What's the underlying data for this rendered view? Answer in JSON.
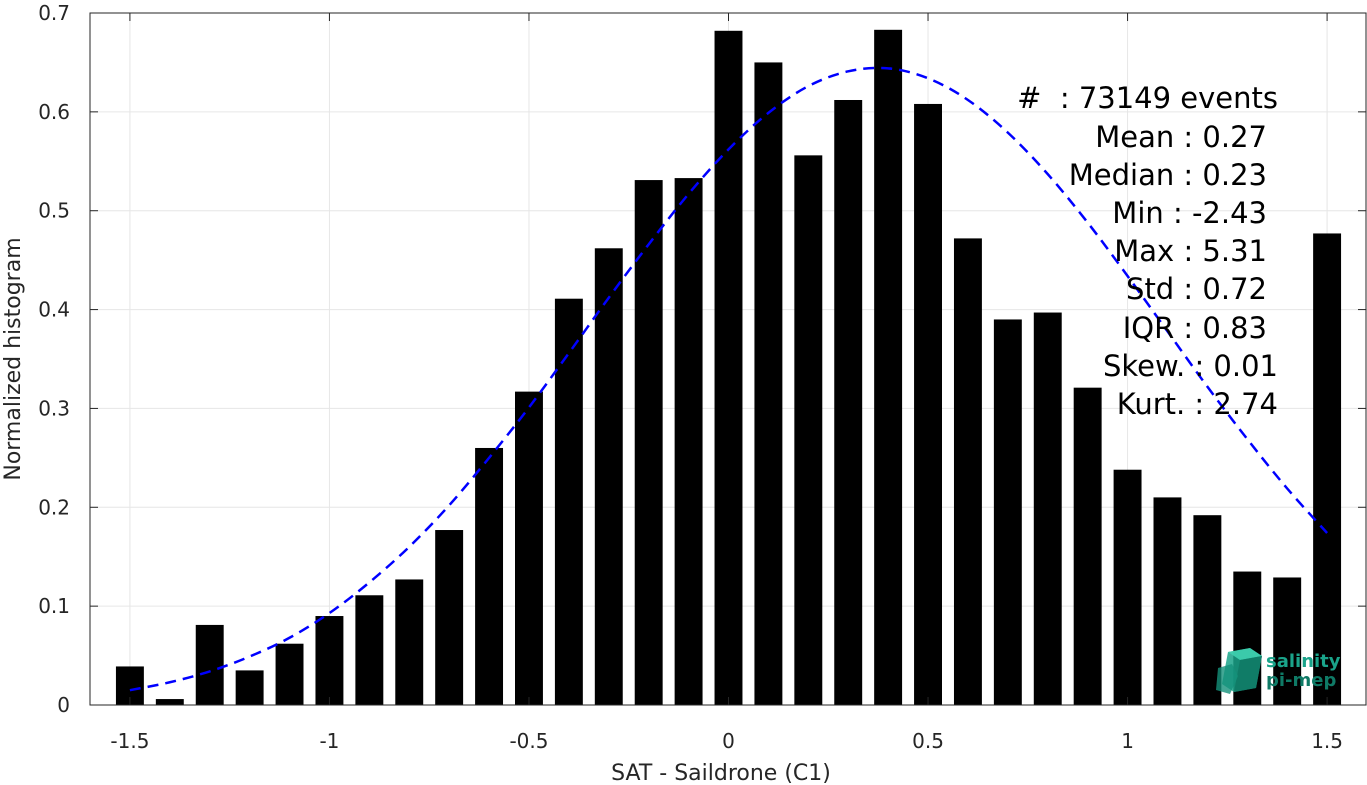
{
  "chart_data": {
    "type": "bar",
    "xlabel": "SAT - Saildrone (C1)",
    "ylabel": "Normalized histogram",
    "xlim": [
      -1.6,
      1.6
    ],
    "ylim": [
      0,
      0.7
    ],
    "grid": true,
    "x_ticks": [
      "-1.5",
      "-1",
      "-0.5",
      "0",
      "0.5",
      "1",
      "1.5"
    ],
    "x_tick_values": [
      -1.5,
      -1,
      -0.5,
      0,
      0.5,
      1,
      1.5
    ],
    "y_ticks": [
      "0",
      "0.1",
      "0.2",
      "0.3",
      "0.4",
      "0.5",
      "0.6",
      "0.7"
    ],
    "y_tick_values": [
      0,
      0.1,
      0.2,
      0.3,
      0.4,
      0.5,
      0.6,
      0.7
    ],
    "bar_width": 0.07,
    "bars": {
      "x": [
        -1.5,
        -1.4,
        -1.3,
        -1.2,
        -1.1,
        -1.0,
        -0.9,
        -0.8,
        -0.7,
        -0.6,
        -0.5,
        -0.4,
        -0.3,
        -0.2,
        -0.1,
        0.0,
        0.1,
        0.2,
        0.3,
        0.4,
        0.5,
        0.6,
        0.7,
        0.8,
        0.9,
        1.0,
        1.1,
        1.2,
        1.3,
        1.4,
        1.5
      ],
      "values": [
        0.039,
        0.006,
        0.081,
        0.035,
        0.062,
        0.09,
        0.111,
        0.127,
        0.177,
        0.26,
        0.317,
        0.411,
        0.462,
        0.531,
        0.533,
        0.682,
        0.65,
        0.556,
        0.612,
        0.683,
        0.608,
        0.472,
        0.39,
        0.397,
        0.321,
        0.238,
        0.21,
        0.192,
        0.135,
        0.129,
        0.477
      ],
      "color": "#000000"
    },
    "fit_curve": {
      "style": "dashed",
      "color": "#0000ff",
      "x": [
        -1.5,
        -1.4,
        -1.3,
        -1.2,
        -1.1,
        -1.0,
        -0.9,
        -0.8,
        -0.7,
        -0.6,
        -0.5,
        -0.4,
        -0.3,
        -0.2,
        -0.1,
        0.0,
        0.1,
        0.2,
        0.3,
        0.4,
        0.5,
        0.6,
        0.7,
        0.8,
        0.9,
        1.0,
        1.1,
        1.2,
        1.3,
        1.4,
        1.5
      ],
      "y": [
        0.015,
        0.023,
        0.034,
        0.049,
        0.068,
        0.093,
        0.124,
        0.16,
        0.202,
        0.25,
        0.301,
        0.356,
        0.412,
        0.466,
        0.517,
        0.562,
        0.599,
        0.626,
        0.641,
        0.644,
        0.634,
        0.612,
        0.579,
        0.537,
        0.488,
        0.434,
        0.378,
        0.322,
        0.269,
        0.219,
        0.174
      ]
    },
    "stats": [
      "#  : 73149 events",
      "Mean : 0.27",
      "Median : 0.23",
      "Min : -2.43",
      "Max : 5.31",
      "Std : 0.72",
      "IQR : 0.83",
      "Skew. : 0.01",
      "Kurt. : 2.74"
    ]
  },
  "logo": {
    "line1": "salinity",
    "line2": "pi-mep",
    "color": "#1aa38a"
  }
}
